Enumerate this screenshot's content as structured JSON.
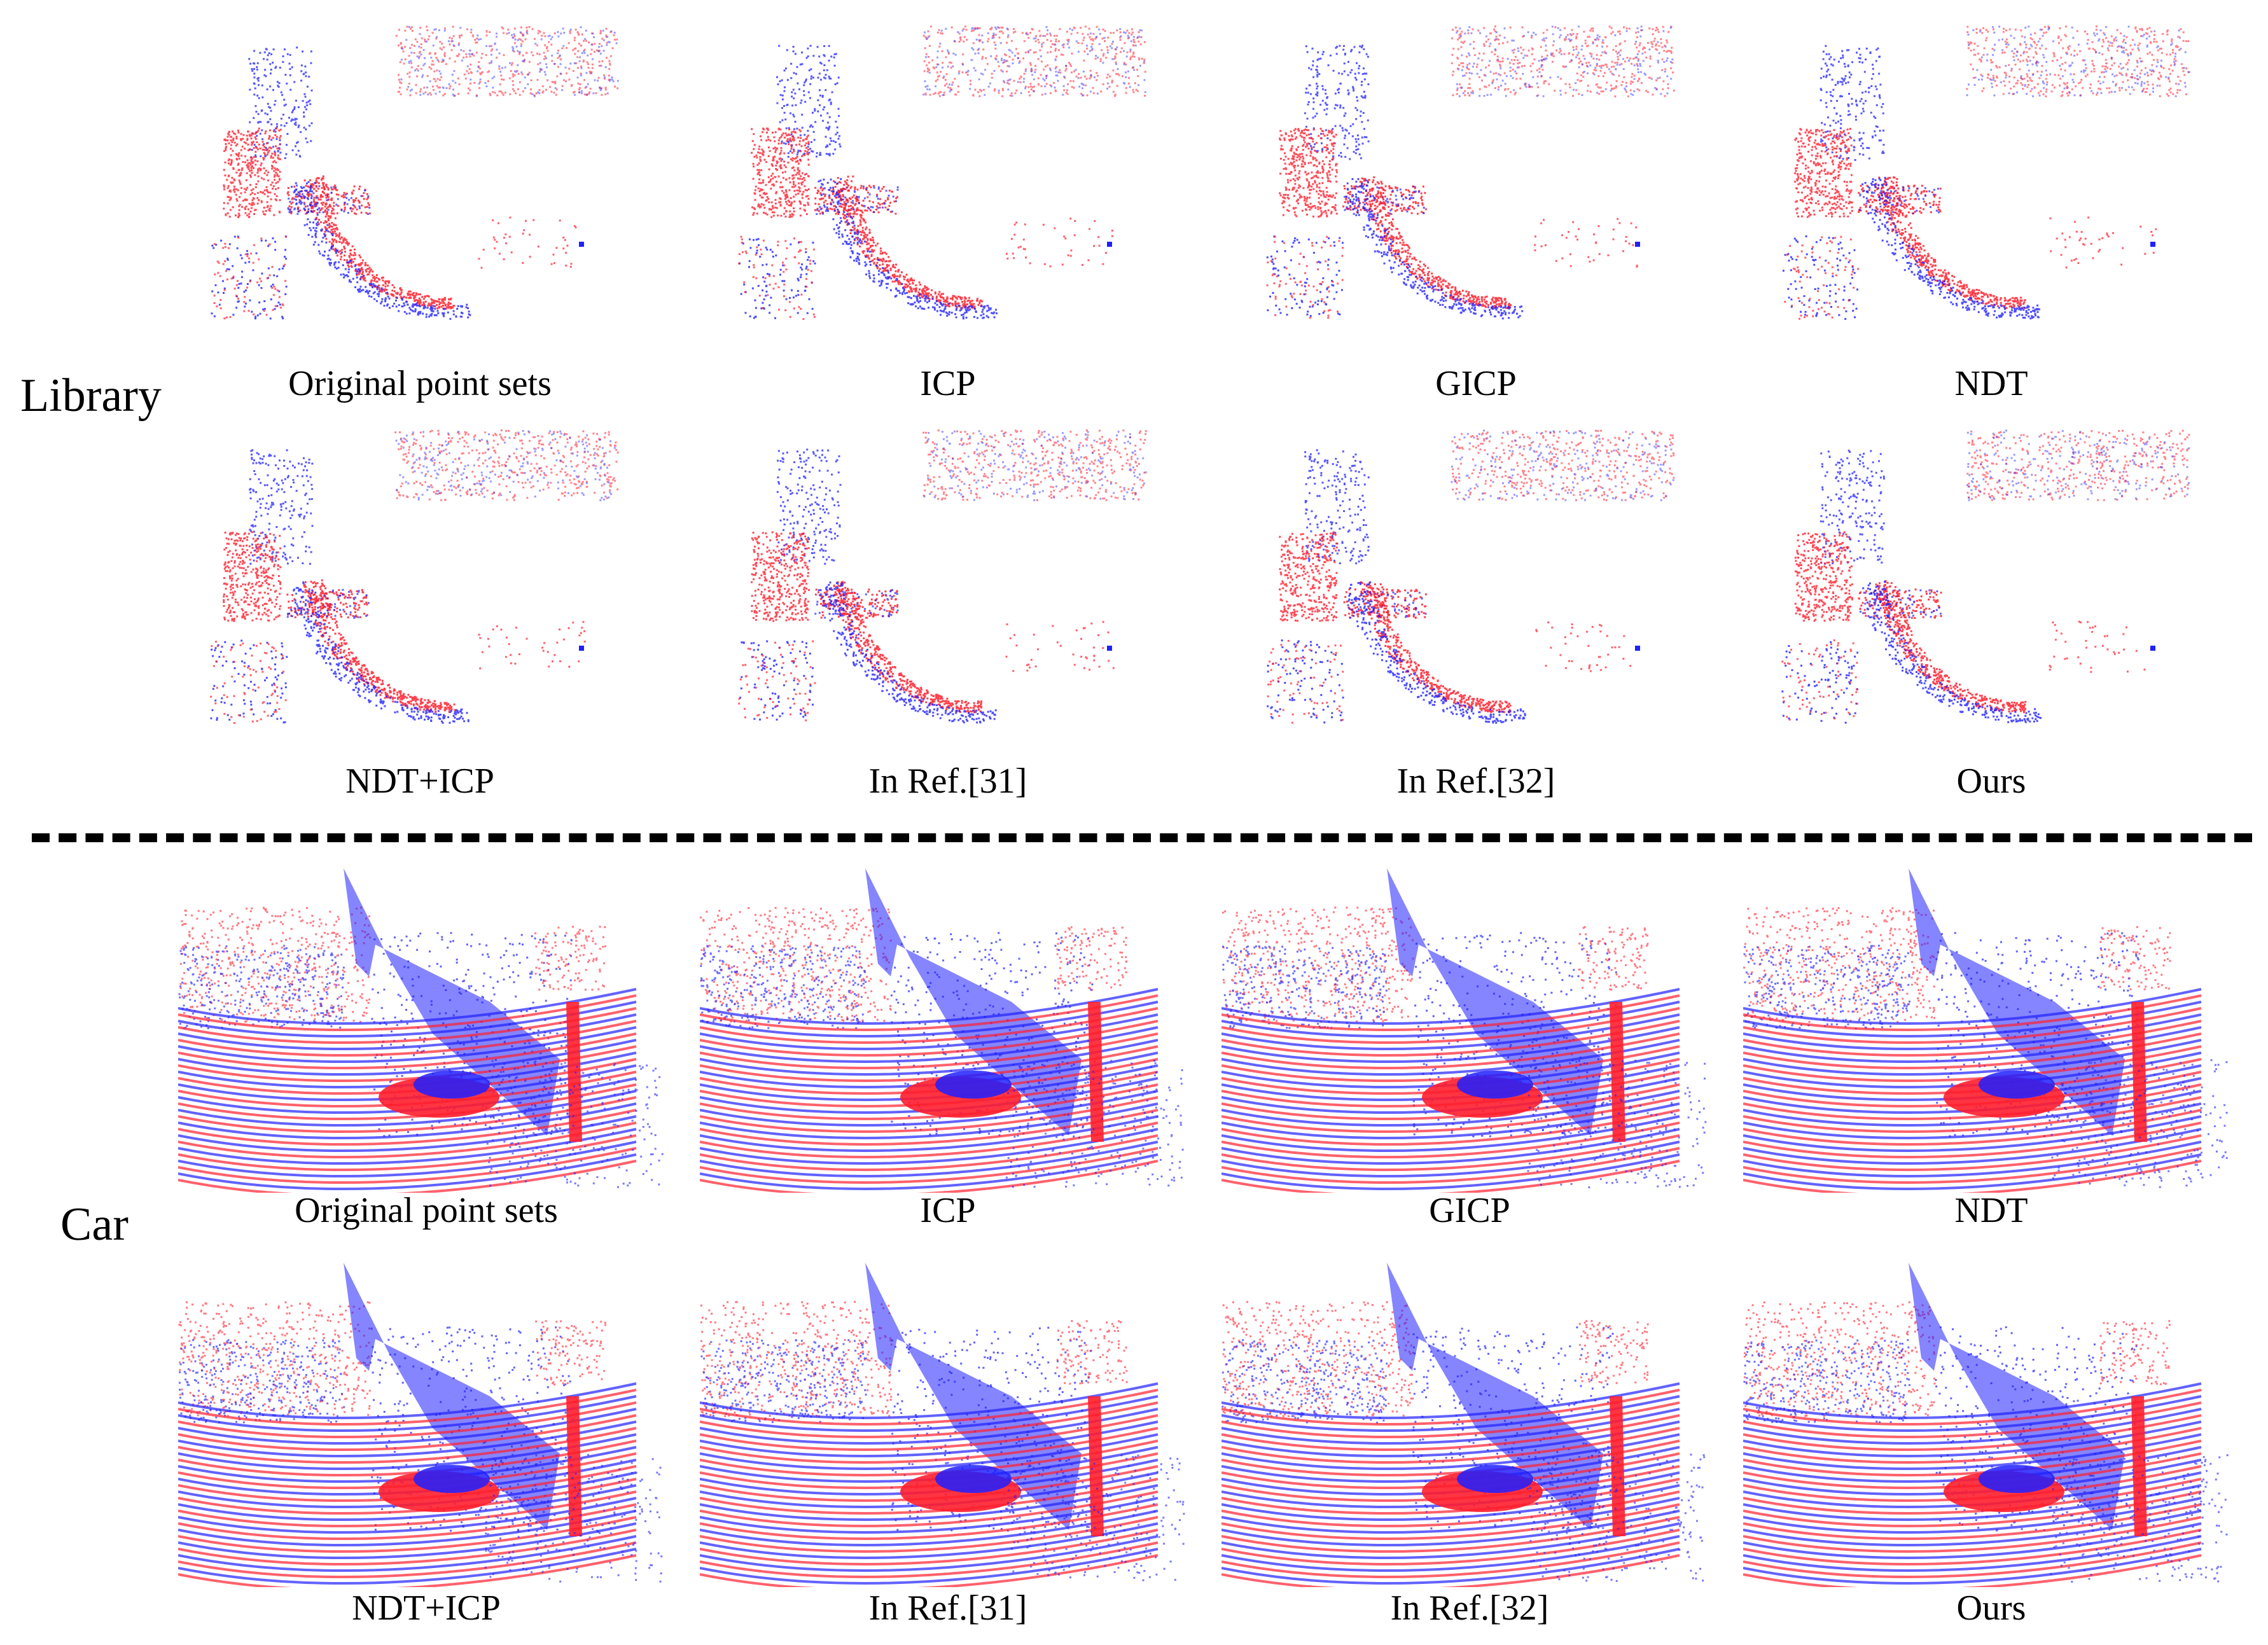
{
  "groups": [
    {
      "label": "Library",
      "panels": [
        {
          "caption": "Original point sets"
        },
        {
          "caption": "ICP"
        },
        {
          "caption": "GICP"
        },
        {
          "caption": "NDT"
        },
        {
          "caption": "NDT+ICP"
        },
        {
          "caption": "In Ref.[31]"
        },
        {
          "caption": "In Ref.[32]"
        },
        {
          "caption": "Ours"
        }
      ]
    },
    {
      "label": "Car",
      "panels": [
        {
          "caption": "Original point sets"
        },
        {
          "caption": "ICP"
        },
        {
          "caption": "GICP"
        },
        {
          "caption": "NDT"
        },
        {
          "caption": "NDT+ICP"
        },
        {
          "caption": "In Ref.[31]"
        },
        {
          "caption": "In Ref.[32]"
        },
        {
          "caption": "Ours"
        }
      ]
    }
  ],
  "colors": {
    "source_points": "#ff1e2d",
    "target_points": "#2020ff",
    "divider": "#000000"
  }
}
